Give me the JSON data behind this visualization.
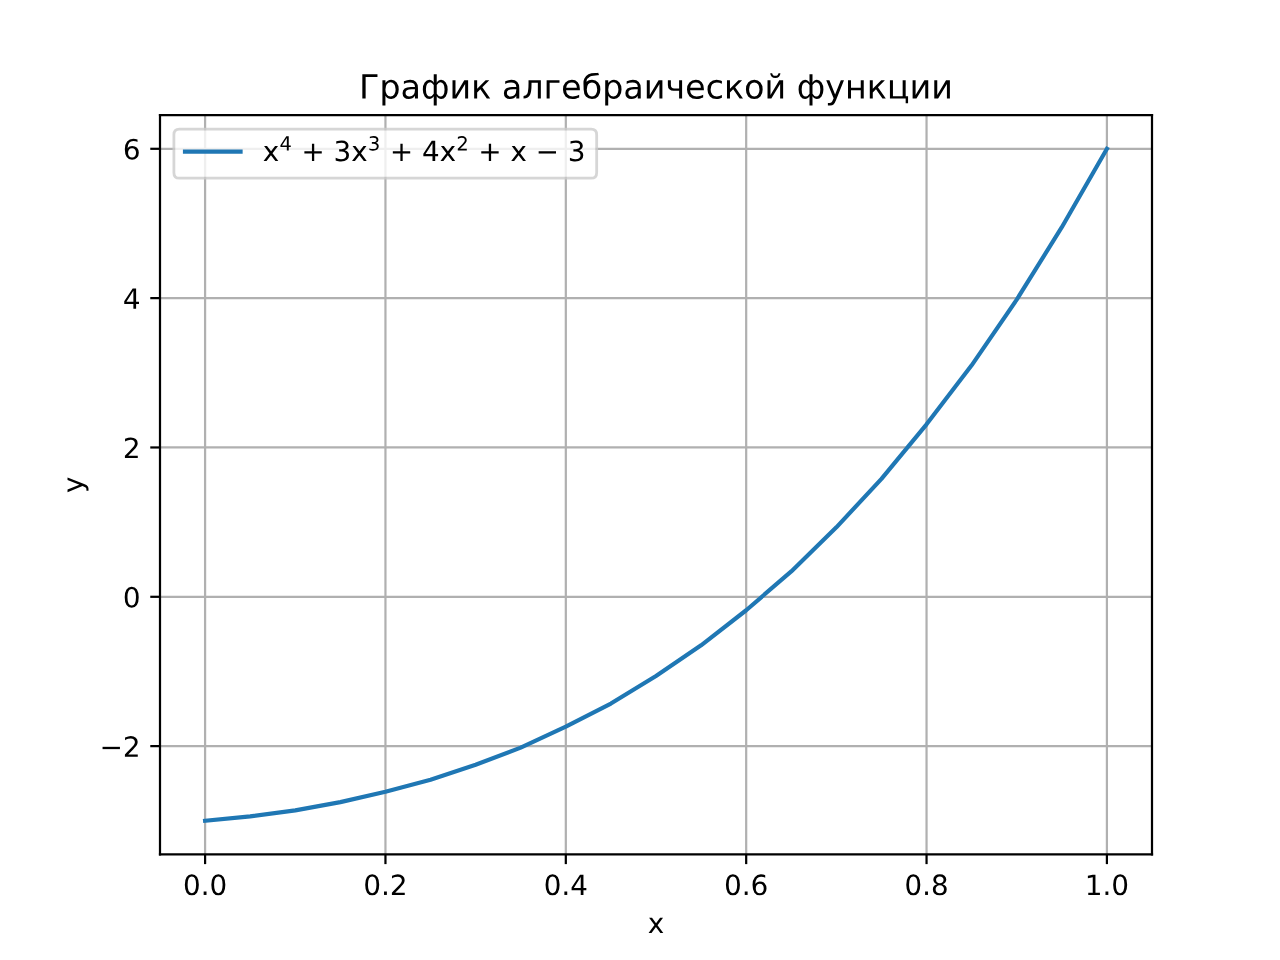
{
  "chart_data": {
    "type": "line",
    "title": "График алгебраической функции",
    "xlabel": "x",
    "ylabel": "y",
    "x": [
      0,
      0.05,
      0.1,
      0.15,
      0.2,
      0.25,
      0.3,
      0.35,
      0.4,
      0.45,
      0.5,
      0.55,
      0.6,
      0.65,
      0.7,
      0.75,
      0.8,
      0.85,
      0.9,
      0.95,
      1.0
    ],
    "series": [
      {
        "name": "x$^{4}$ + 3x$^{3}$ + 4x$^{2}$ + x − 3",
        "color": "#1f77b4",
        "values": [
          -3.0,
          -2.94,
          -2.86,
          -2.75,
          -2.61,
          -2.45,
          -2.25,
          -2.02,
          -1.74,
          -1.43,
          -1.06,
          -0.65,
          -0.18,
          0.34,
          0.93,
          1.58,
          2.31,
          3.1,
          3.98,
          4.95,
          6.0
        ]
      }
    ],
    "xlim": [
      -0.05,
      1.05
    ],
    "ylim": [
      -3.45,
      6.45
    ],
    "xticks": [
      {
        "value": 0,
        "label": "0.0"
      },
      0.2,
      0.4,
      0.6,
      0.8,
      {
        "value": 1,
        "label": "1.0"
      }
    ],
    "yticks": [
      {
        "value": -2,
        "label": "−2"
      },
      0,
      2,
      4,
      6
    ],
    "grid": true,
    "legend": "top left",
    "marker": "none",
    "line_style": "solid"
  }
}
